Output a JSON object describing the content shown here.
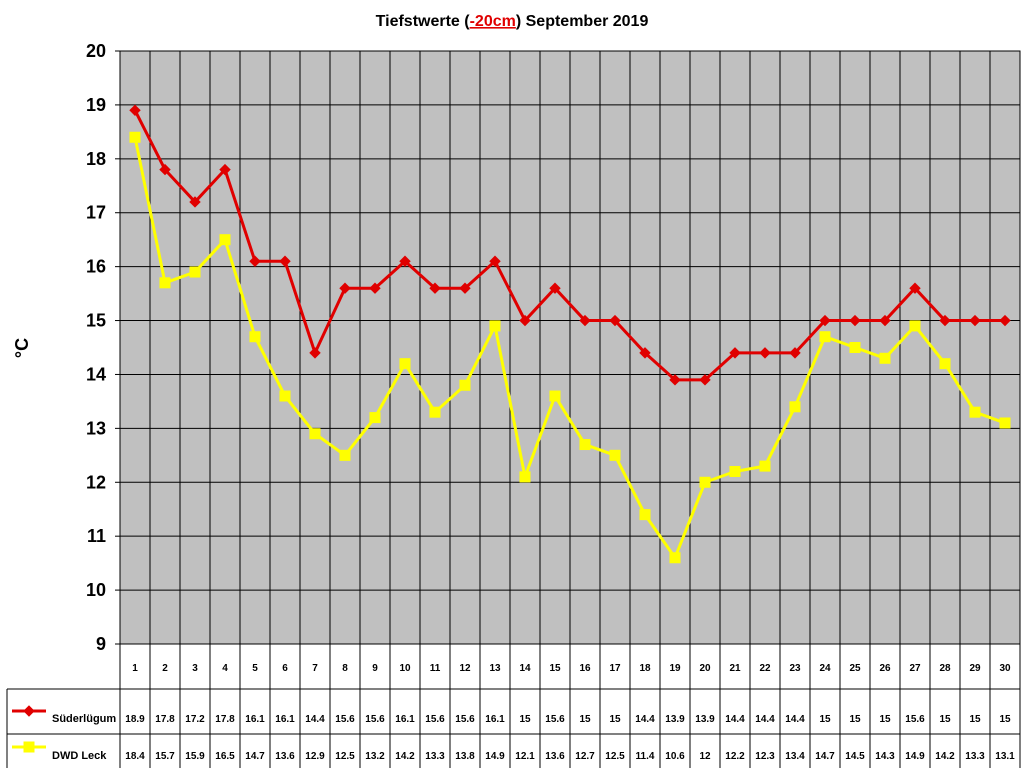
{
  "chart_data": {
    "type": "line",
    "title": {
      "prefix": "Tiefstwerte (",
      "highlight": "-20cm",
      "suffix": ") September 2019"
    },
    "ylabel": "°C",
    "ylim": [
      9,
      20
    ],
    "y_ticks": [
      9,
      10,
      11,
      12,
      13,
      14,
      15,
      16,
      17,
      18,
      19,
      20
    ],
    "categories": [
      "1",
      "2",
      "3",
      "4",
      "5",
      "6",
      "7",
      "8",
      "9",
      "10",
      "11",
      "12",
      "13",
      "14",
      "15",
      "16",
      "17",
      "18",
      "19",
      "20",
      "21",
      "22",
      "23",
      "24",
      "25",
      "26",
      "27",
      "28",
      "29",
      "30"
    ],
    "series": [
      {
        "name": "Süderlügum",
        "color": "#e00000",
        "marker": "diamond",
        "values": [
          18.9,
          17.8,
          17.2,
          17.8,
          16.1,
          16.1,
          14.4,
          15.6,
          15.6,
          16.1,
          15.6,
          15.6,
          16.1,
          15,
          15.6,
          15,
          15,
          14.4,
          13.9,
          13.9,
          14.4,
          14.4,
          14.4,
          15,
          15,
          15,
          15.6,
          15,
          15,
          15
        ],
        "labels": [
          "18.9",
          "17.8",
          "17.2",
          "17.8",
          "16.1",
          "16.1",
          "14.4",
          "15.6",
          "15.6",
          "16.1",
          "15.6",
          "15.6",
          "16.1",
          "15",
          "15.6",
          "15",
          "15",
          "14.4",
          "13.9",
          "13.9",
          "14.4",
          "14.4",
          "14.4",
          "15",
          "15",
          "15",
          "15.6",
          "15",
          "15",
          "15"
        ]
      },
      {
        "name": "DWD Leck",
        "color": "#ffff00",
        "marker": "square",
        "values": [
          18.4,
          15.7,
          15.9,
          16.5,
          14.7,
          13.6,
          12.9,
          12.5,
          13.2,
          14.2,
          13.3,
          13.8,
          14.9,
          12.1,
          13.6,
          12.7,
          12.5,
          11.4,
          10.6,
          12,
          12.2,
          12.3,
          13.4,
          14.7,
          14.5,
          14.3,
          14.9,
          14.2,
          13.3,
          13.1
        ],
        "labels": [
          "18.4",
          "15.7",
          "15.9",
          "16.5",
          "14.7",
          "13.6",
          "12.9",
          "12.5",
          "13.2",
          "14.2",
          "13.3",
          "13.8",
          "14.9",
          "12.1",
          "13.6",
          "12.7",
          "12.5",
          "11.4",
          "10.6",
          "12",
          "12.2",
          "12.3",
          "13.4",
          "14.7",
          "14.5",
          "14.3",
          "14.9",
          "14.2",
          "13.3",
          "13.1"
        ]
      }
    ],
    "grid": true,
    "legend": "data-table-left",
    "colors": {
      "plot_background": "#c0c0c0",
      "title_highlight": "#e00000"
    }
  }
}
